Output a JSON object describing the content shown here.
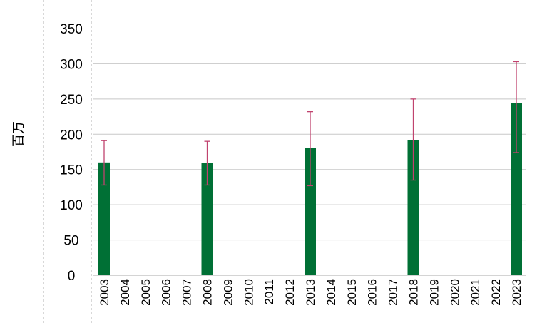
{
  "chart_data": {
    "type": "bar",
    "ylabel": "百万",
    "xlabel": "",
    "title": "",
    "ylim": [
      0,
      350
    ],
    "yticks": [
      0,
      50,
      100,
      150,
      200,
      250,
      300,
      350
    ],
    "grid": true,
    "categories": [
      "2003",
      "2004",
      "2005",
      "2006",
      "2007",
      "2008",
      "2009",
      "2010",
      "2011",
      "2012",
      "2013",
      "2014",
      "2015",
      "2016",
      "2017",
      "2018",
      "2019",
      "2020",
      "2021",
      "2022",
      "2023"
    ],
    "values": [
      160,
      null,
      null,
      null,
      null,
      159,
      null,
      null,
      null,
      null,
      181,
      null,
      null,
      null,
      null,
      192,
      null,
      null,
      null,
      null,
      244
    ],
    "error_low": [
      128,
      null,
      null,
      null,
      null,
      128,
      null,
      null,
      null,
      null,
      127,
      null,
      null,
      null,
      null,
      135,
      null,
      null,
      null,
      null,
      174
    ],
    "error_high": [
      191,
      null,
      null,
      null,
      null,
      190,
      null,
      null,
      null,
      null,
      232,
      null,
      null,
      null,
      null,
      250,
      null,
      null,
      null,
      null,
      303
    ],
    "colors": {
      "bar": "#007035",
      "error_bar": "#c0436e",
      "grid": "#c8c8c8",
      "border": "#a9a9a9"
    }
  }
}
